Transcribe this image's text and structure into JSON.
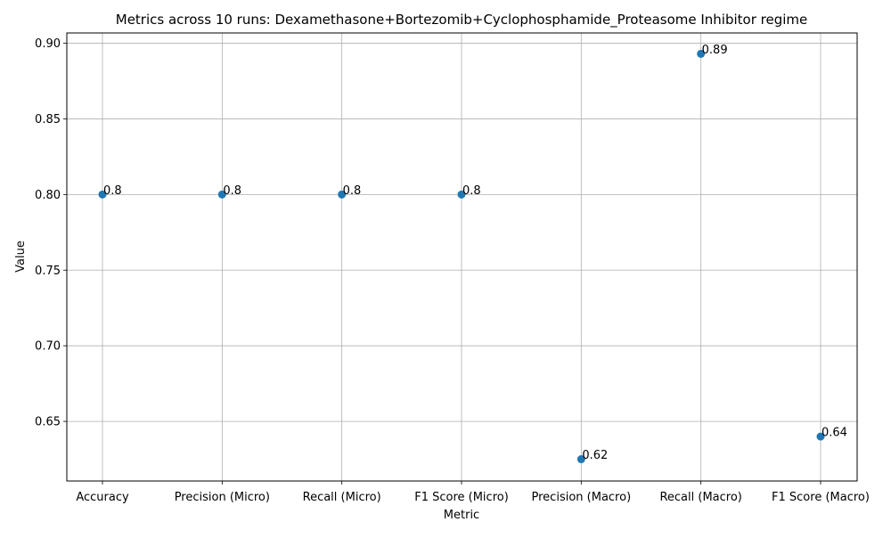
{
  "chart_data": {
    "type": "scatter",
    "title": "Metrics across 10 runs: Dexamethasone+Bortezomib+Cyclophosphamide_Proteasome Inhibitor regime",
    "xlabel": "Metric",
    "ylabel": "Value",
    "categories": [
      "Accuracy",
      "Precision (Micro)",
      "Recall (Micro)",
      "F1 Score (Micro)",
      "Precision (Macro)",
      "Recall (Macro)",
      "F1 Score (Macro)"
    ],
    "values": [
      0.8,
      0.8,
      0.8,
      0.8,
      0.625,
      0.893,
      0.64
    ],
    "point_labels": [
      "0.8",
      "0.8",
      "0.8",
      "0.8",
      "0.62",
      "0.89",
      "0.64"
    ],
    "ylim": [
      0.6106,
      0.9068
    ],
    "yticks": [
      0.65,
      0.7,
      0.75,
      0.8,
      0.85,
      0.9
    ],
    "ytick_labels": [
      "0.65",
      "0.70",
      "0.75",
      "0.80",
      "0.85",
      "0.90"
    ],
    "grid": true,
    "marker_color": "#1f77b4",
    "grid_color": "#b0b0b0"
  }
}
